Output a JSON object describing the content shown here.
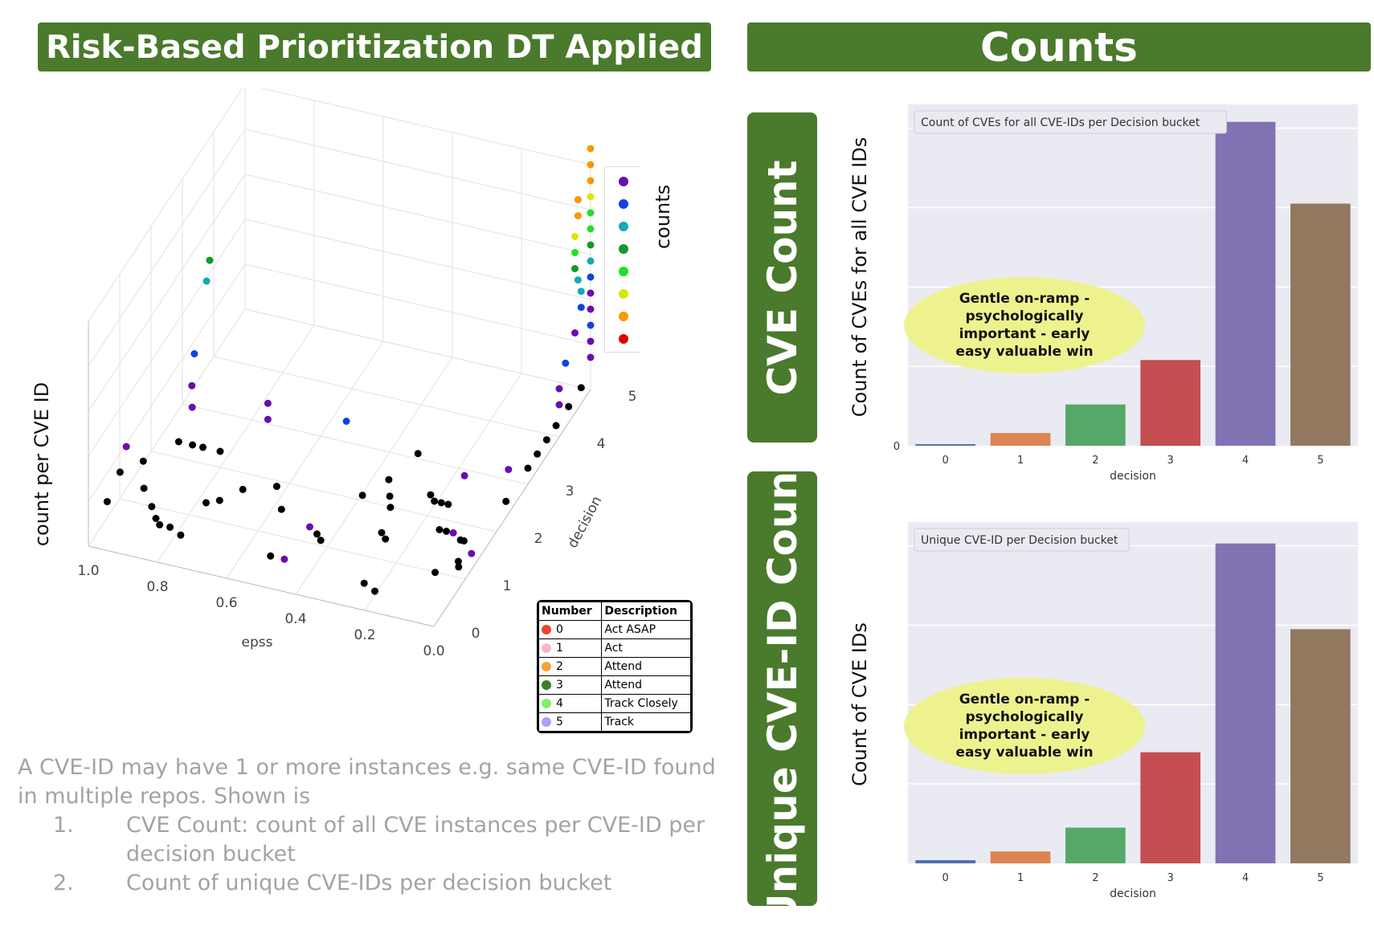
{
  "left_header": "Risk-Based Prioritization DT Applied",
  "right_header": "Counts",
  "side_label_1": "CVE Count",
  "side_label_2": "Unique CVE-ID Count",
  "notes": {
    "intro": "A CVE-ID may have 1 or more instances e.g. same CVE-ID found in multiple repos. Shown is",
    "items": [
      {
        "num": "1.",
        "text": "CVE Count: count of all CVE instances per CVE-ID per decision bucket"
      },
      {
        "num": "2.",
        "text": "Count of unique CVE-IDs per decision bucket"
      }
    ]
  },
  "annotation": "Gentle on-ramp - psychologically important - early easy valuable win",
  "decision_table": {
    "headers": [
      "Number",
      "Description"
    ],
    "rows": [
      {
        "num": "0",
        "desc": "Act ASAP",
        "color": "#e8462b"
      },
      {
        "num": "1",
        "desc": "Act",
        "color": "#f6b8c8"
      },
      {
        "num": "2",
        "desc": "Attend",
        "color": "#f2a43a"
      },
      {
        "num": "3",
        "desc": "Attend",
        "color": "#3c7d2a"
      },
      {
        "num": "4",
        "desc": "Track Closely",
        "color": "#7df067"
      },
      {
        "num": "5",
        "desc": "Track",
        "color": "#a8a4f2"
      }
    ]
  },
  "chart_data": [
    {
      "type": "scatter",
      "title": "",
      "xlabel": "epss",
      "ylabel": "decision",
      "zlabel": "count per CVE ID",
      "colorbar_label": "counts",
      "x_ticks": [
        "1.0",
        "0.8",
        "0.6",
        "0.4",
        "0.2",
        "0.0"
      ],
      "y_ticks": [
        "0",
        "1",
        "2",
        "3",
        "4",
        "5"
      ],
      "colorbar_colors": [
        "#6a0dad",
        "#1442e0",
        "#12aab4",
        "#109a28",
        "#20e020",
        "#d8e800",
        "#f59a00",
        "#e00000"
      ],
      "points": [
        {
          "x": 0.93,
          "y": 3.1,
          "z": 9,
          "c": 4
        },
        {
          "x": 0.93,
          "y": 3.0,
          "z": 8,
          "c": 3
        },
        {
          "x": 0.92,
          "y": 2.5,
          "z": 5,
          "c": 2
        },
        {
          "x": 0.9,
          "y": 2.2,
          "z": 4,
          "c": 1
        },
        {
          "x": 0.89,
          "y": 2.1,
          "z": 3,
          "c": 1
        },
        {
          "x": 0.92,
          "y": 2.0,
          "z": 1,
          "c": 0
        },
        {
          "x": 0.88,
          "y": 2.0,
          "z": 1,
          "c": 0
        },
        {
          "x": 0.85,
          "y": 2.0,
          "z": 1,
          "c": 0
        },
        {
          "x": 0.8,
          "y": 2.0,
          "z": 1,
          "c": 0
        },
        {
          "x": 0.68,
          "y": 2.2,
          "z": 4,
          "c": 1
        },
        {
          "x": 0.68,
          "y": 2.2,
          "z": 3,
          "c": 1
        },
        {
          "x": 1.0,
          "y": 0.6,
          "z": 1,
          "c": 0
        },
        {
          "x": 0.99,
          "y": 0.9,
          "z": 2,
          "c": 0
        },
        {
          "x": 0.99,
          "y": 1.1,
          "z": 3,
          "c": 1
        },
        {
          "x": 0.95,
          "y": 1.2,
          "z": 2,
          "c": 0
        },
        {
          "x": 0.93,
          "y": 1.0,
          "z": 1,
          "c": 0
        },
        {
          "x": 0.88,
          "y": 0.7,
          "z": 1,
          "c": 0
        },
        {
          "x": 0.85,
          "y": 0.5,
          "z": 1,
          "c": 0
        },
        {
          "x": 0.83,
          "y": 0.4,
          "z": 1,
          "c": 0
        },
        {
          "x": 0.8,
          "y": 0.4,
          "z": 1,
          "c": 0
        },
        {
          "x": 0.76,
          "y": 0.3,
          "z": 1,
          "c": 0
        },
        {
          "x": 0.75,
          "y": 1.0,
          "z": 1,
          "c": 0
        },
        {
          "x": 0.72,
          "y": 1.1,
          "z": 1,
          "c": 0
        },
        {
          "x": 0.68,
          "y": 1.4,
          "z": 1,
          "c": 0
        },
        {
          "x": 0.6,
          "y": 1.6,
          "z": 1,
          "c": 0
        },
        {
          "x": 0.55,
          "y": 1.2,
          "z": 1,
          "c": 0
        },
        {
          "x": 0.5,
          "y": 0.3,
          "z": 1,
          "c": 0
        },
        {
          "x": 0.46,
          "y": 0.3,
          "z": 1,
          "c": 1
        },
        {
          "x": 0.45,
          "y": 1.0,
          "z": 1,
          "c": 1
        },
        {
          "x": 0.42,
          "y": 0.9,
          "z": 1,
          "c": 0
        },
        {
          "x": 0.4,
          "y": 0.8,
          "z": 1,
          "c": 0
        },
        {
          "x": 0.37,
          "y": 1.8,
          "z": 1,
          "c": 0
        },
        {
          "x": 0.33,
          "y": 2.2,
          "z": 1,
          "c": 0
        },
        {
          "x": 0.3,
          "y": 1.9,
          "z": 1,
          "c": 0
        },
        {
          "x": 0.28,
          "y": 1.7,
          "z": 1,
          "c": 0
        },
        {
          "x": 0.3,
          "y": 2.8,
          "z": 1,
          "c": 0
        },
        {
          "x": 0.26,
          "y": 1.2,
          "z": 1,
          "c": 0
        },
        {
          "x": 0.24,
          "y": 1.1,
          "z": 1,
          "c": 0
        },
        {
          "x": 0.22,
          "y": 0.2,
          "z": 1,
          "c": 0
        },
        {
          "x": 0.18,
          "y": 0.1,
          "z": 1,
          "c": 0
        },
        {
          "x": 0.2,
          "y": 2.1,
          "z": 1,
          "c": 0
        },
        {
          "x": 0.18,
          "y": 2.0,
          "z": 1,
          "c": 0
        },
        {
          "x": 0.16,
          "y": 2.0,
          "z": 1,
          "c": 0
        },
        {
          "x": 0.14,
          "y": 2.0,
          "z": 1,
          "c": 0
        },
        {
          "x": 0.12,
          "y": 1.5,
          "z": 1,
          "c": 0
        },
        {
          "x": 0.1,
          "y": 1.5,
          "z": 1,
          "c": 0
        },
        {
          "x": 0.08,
          "y": 1.5,
          "z": 1,
          "c": 1
        },
        {
          "x": 0.05,
          "y": 1.4,
          "z": 1,
          "c": 0
        },
        {
          "x": 0.04,
          "y": 1.4,
          "z": 1,
          "c": 0
        },
        {
          "x": 0.06,
          "y": 0.7,
          "z": 1,
          "c": 0
        },
        {
          "x": 0.02,
          "y": 1.0,
          "z": 1,
          "c": 0
        },
        {
          "x": 0.01,
          "y": 0.9,
          "z": 1,
          "c": 0
        },
        {
          "x": 0.0,
          "y": 1.2,
          "z": 1,
          "c": 1
        },
        {
          "x": 0.48,
          "y": 2.5,
          "z": 3,
          "c": 2
        },
        {
          "x": 0.12,
          "y": 2.3,
          "z": 2,
          "c": 1
        },
        {
          "x": 0.02,
          "y": 2.6,
          "z": 2,
          "c": 1
        },
        {
          "x": 0.0,
          "y": 2.3,
          "z": 1,
          "c": 0
        },
        {
          "x": 0.0,
          "y": 3.0,
          "z": 1,
          "c": 0
        },
        {
          "x": 0.0,
          "y": 3.3,
          "z": 1,
          "c": 0
        },
        {
          "x": 0.0,
          "y": 3.6,
          "z": 1,
          "c": 0
        },
        {
          "x": 0.0,
          "y": 3.9,
          "z": 1,
          "c": 0
        },
        {
          "x": 0.0,
          "y": 4.3,
          "z": 1,
          "c": 0
        },
        {
          "x": 0.0,
          "y": 4.7,
          "z": 1,
          "c": 0
        },
        {
          "x": 0.0,
          "y": 4.0,
          "z": 2,
          "c": 1
        },
        {
          "x": 0.0,
          "y": 4.0,
          "z": 3,
          "c": 1
        },
        {
          "x": 0.0,
          "y": 4.2,
          "z": 4,
          "c": 2
        },
        {
          "x": 0.0,
          "y": 4.5,
          "z": 5,
          "c": 1
        },
        {
          "x": 0.0,
          "y": 4.7,
          "z": 6,
          "c": 2
        },
        {
          "x": 0.0,
          "y": 4.7,
          "z": 7,
          "c": 3
        },
        {
          "x": 0.0,
          "y": 4.6,
          "z": 8,
          "c": 3
        },
        {
          "x": 0.0,
          "y": 4.5,
          "z": 9,
          "c": 4
        },
        {
          "x": 0.0,
          "y": 4.5,
          "z": 10,
          "c": 5
        },
        {
          "x": 0.0,
          "y": 4.5,
          "z": 11,
          "c": 6
        },
        {
          "x": 0.0,
          "y": 4.6,
          "z": 12,
          "c": 7
        },
        {
          "x": 0.0,
          "y": 4.6,
          "z": 13,
          "c": 7
        },
        {
          "x": 0.0,
          "y": 5.0,
          "z": 2,
          "c": 1
        },
        {
          "x": 0.0,
          "y": 5.0,
          "z": 3,
          "c": 1
        },
        {
          "x": 0.0,
          "y": 5.0,
          "z": 4,
          "c": 2
        },
        {
          "x": 0.0,
          "y": 5.0,
          "z": 5,
          "c": 1
        },
        {
          "x": 0.0,
          "y": 5.0,
          "z": 6,
          "c": 1
        },
        {
          "x": 0.0,
          "y": 5.0,
          "z": 7,
          "c": 2
        },
        {
          "x": 0.0,
          "y": 5.0,
          "z": 8,
          "c": 3
        },
        {
          "x": 0.0,
          "y": 5.0,
          "z": 9,
          "c": 4
        },
        {
          "x": 0.0,
          "y": 5.0,
          "z": 10,
          "c": 5
        },
        {
          "x": 0.0,
          "y": 5.0,
          "z": 11,
          "c": 5
        },
        {
          "x": 0.0,
          "y": 5.0,
          "z": 12,
          "c": 6
        },
        {
          "x": 0.0,
          "y": 5.0,
          "z": 13,
          "c": 7
        },
        {
          "x": 0.0,
          "y": 5.0,
          "z": 14,
          "c": 7
        },
        {
          "x": 0.0,
          "y": 5.0,
          "z": 15,
          "c": 7
        }
      ]
    },
    {
      "type": "bar",
      "title": "Count of CVEs for all CVE-IDs per Decision bucket",
      "xlabel": "decision",
      "ylabel": "Count of CVEs for all CVE IDs",
      "categories": [
        "0",
        "1",
        "2",
        "3",
        "4",
        "5"
      ],
      "values": [
        2,
        16,
        52,
        108,
        408,
        305
      ],
      "ylim": [
        0,
        430
      ],
      "y_tick_labels": [
        "0"
      ],
      "colors": [
        "#4c72b0",
        "#dd8452",
        "#55a868",
        "#c44e52",
        "#8172b3",
        "#937860"
      ]
    },
    {
      "type": "bar",
      "title": "Unique CVE-ID per Decision bucket",
      "xlabel": "decision",
      "ylabel": "Count of CVE IDs",
      "categories": [
        "0",
        "1",
        "2",
        "3",
        "4",
        "5"
      ],
      "values": [
        4,
        15,
        45,
        140,
        403,
        295
      ],
      "ylim": [
        0,
        430
      ],
      "colors": [
        "#4c72b0",
        "#dd8452",
        "#55a868",
        "#c44e52",
        "#8172b3",
        "#937860"
      ]
    }
  ]
}
